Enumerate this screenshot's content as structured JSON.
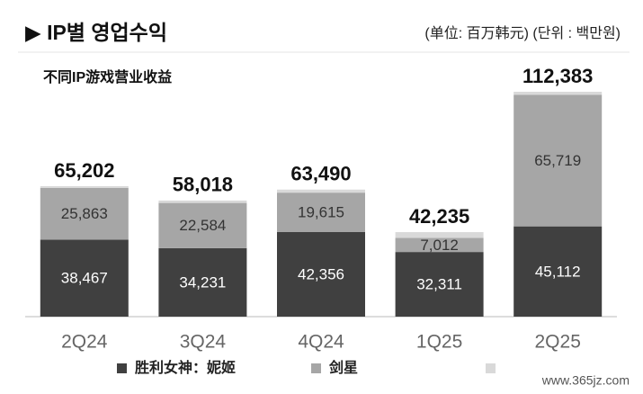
{
  "chart_data": {
    "type": "bar",
    "title": "▶ IP별 영업수익",
    "unit_note": "(单位:  百万韩元)  (단위 : 백만원)",
    "subtitle": "不同IP游戏营业收益",
    "categories": [
      "2Q24",
      "3Q24",
      "4Q24",
      "1Q25",
      "2Q25"
    ],
    "series": [
      {
        "name": "胜利女神：妮姬",
        "color": "#404040",
        "values": [
          38467,
          34231,
          42356,
          32311,
          45112
        ],
        "value_labels": [
          "38,467",
          "34,231",
          "42,356",
          "32,311",
          "45,112"
        ]
      },
      {
        "name": "剑星",
        "color": "#a6a6a6",
        "values": [
          25863,
          22584,
          19615,
          7012,
          65719
        ],
        "value_labels": [
          "25,863",
          "22,584",
          "19,615",
          "7,012",
          "65,719"
        ]
      },
      {
        "color": "#d9d9d9",
        "values": [
          872,
          1203,
          1519,
          2912,
          1552
        ]
      }
    ],
    "totals": {
      "values": [
        65202,
        58018,
        63490,
        42235,
        112383
      ],
      "value_labels": [
        "65,202",
        "58,018",
        "63,490",
        "42,235",
        "112,383"
      ]
    },
    "watermark": "www.365jz.com"
  }
}
